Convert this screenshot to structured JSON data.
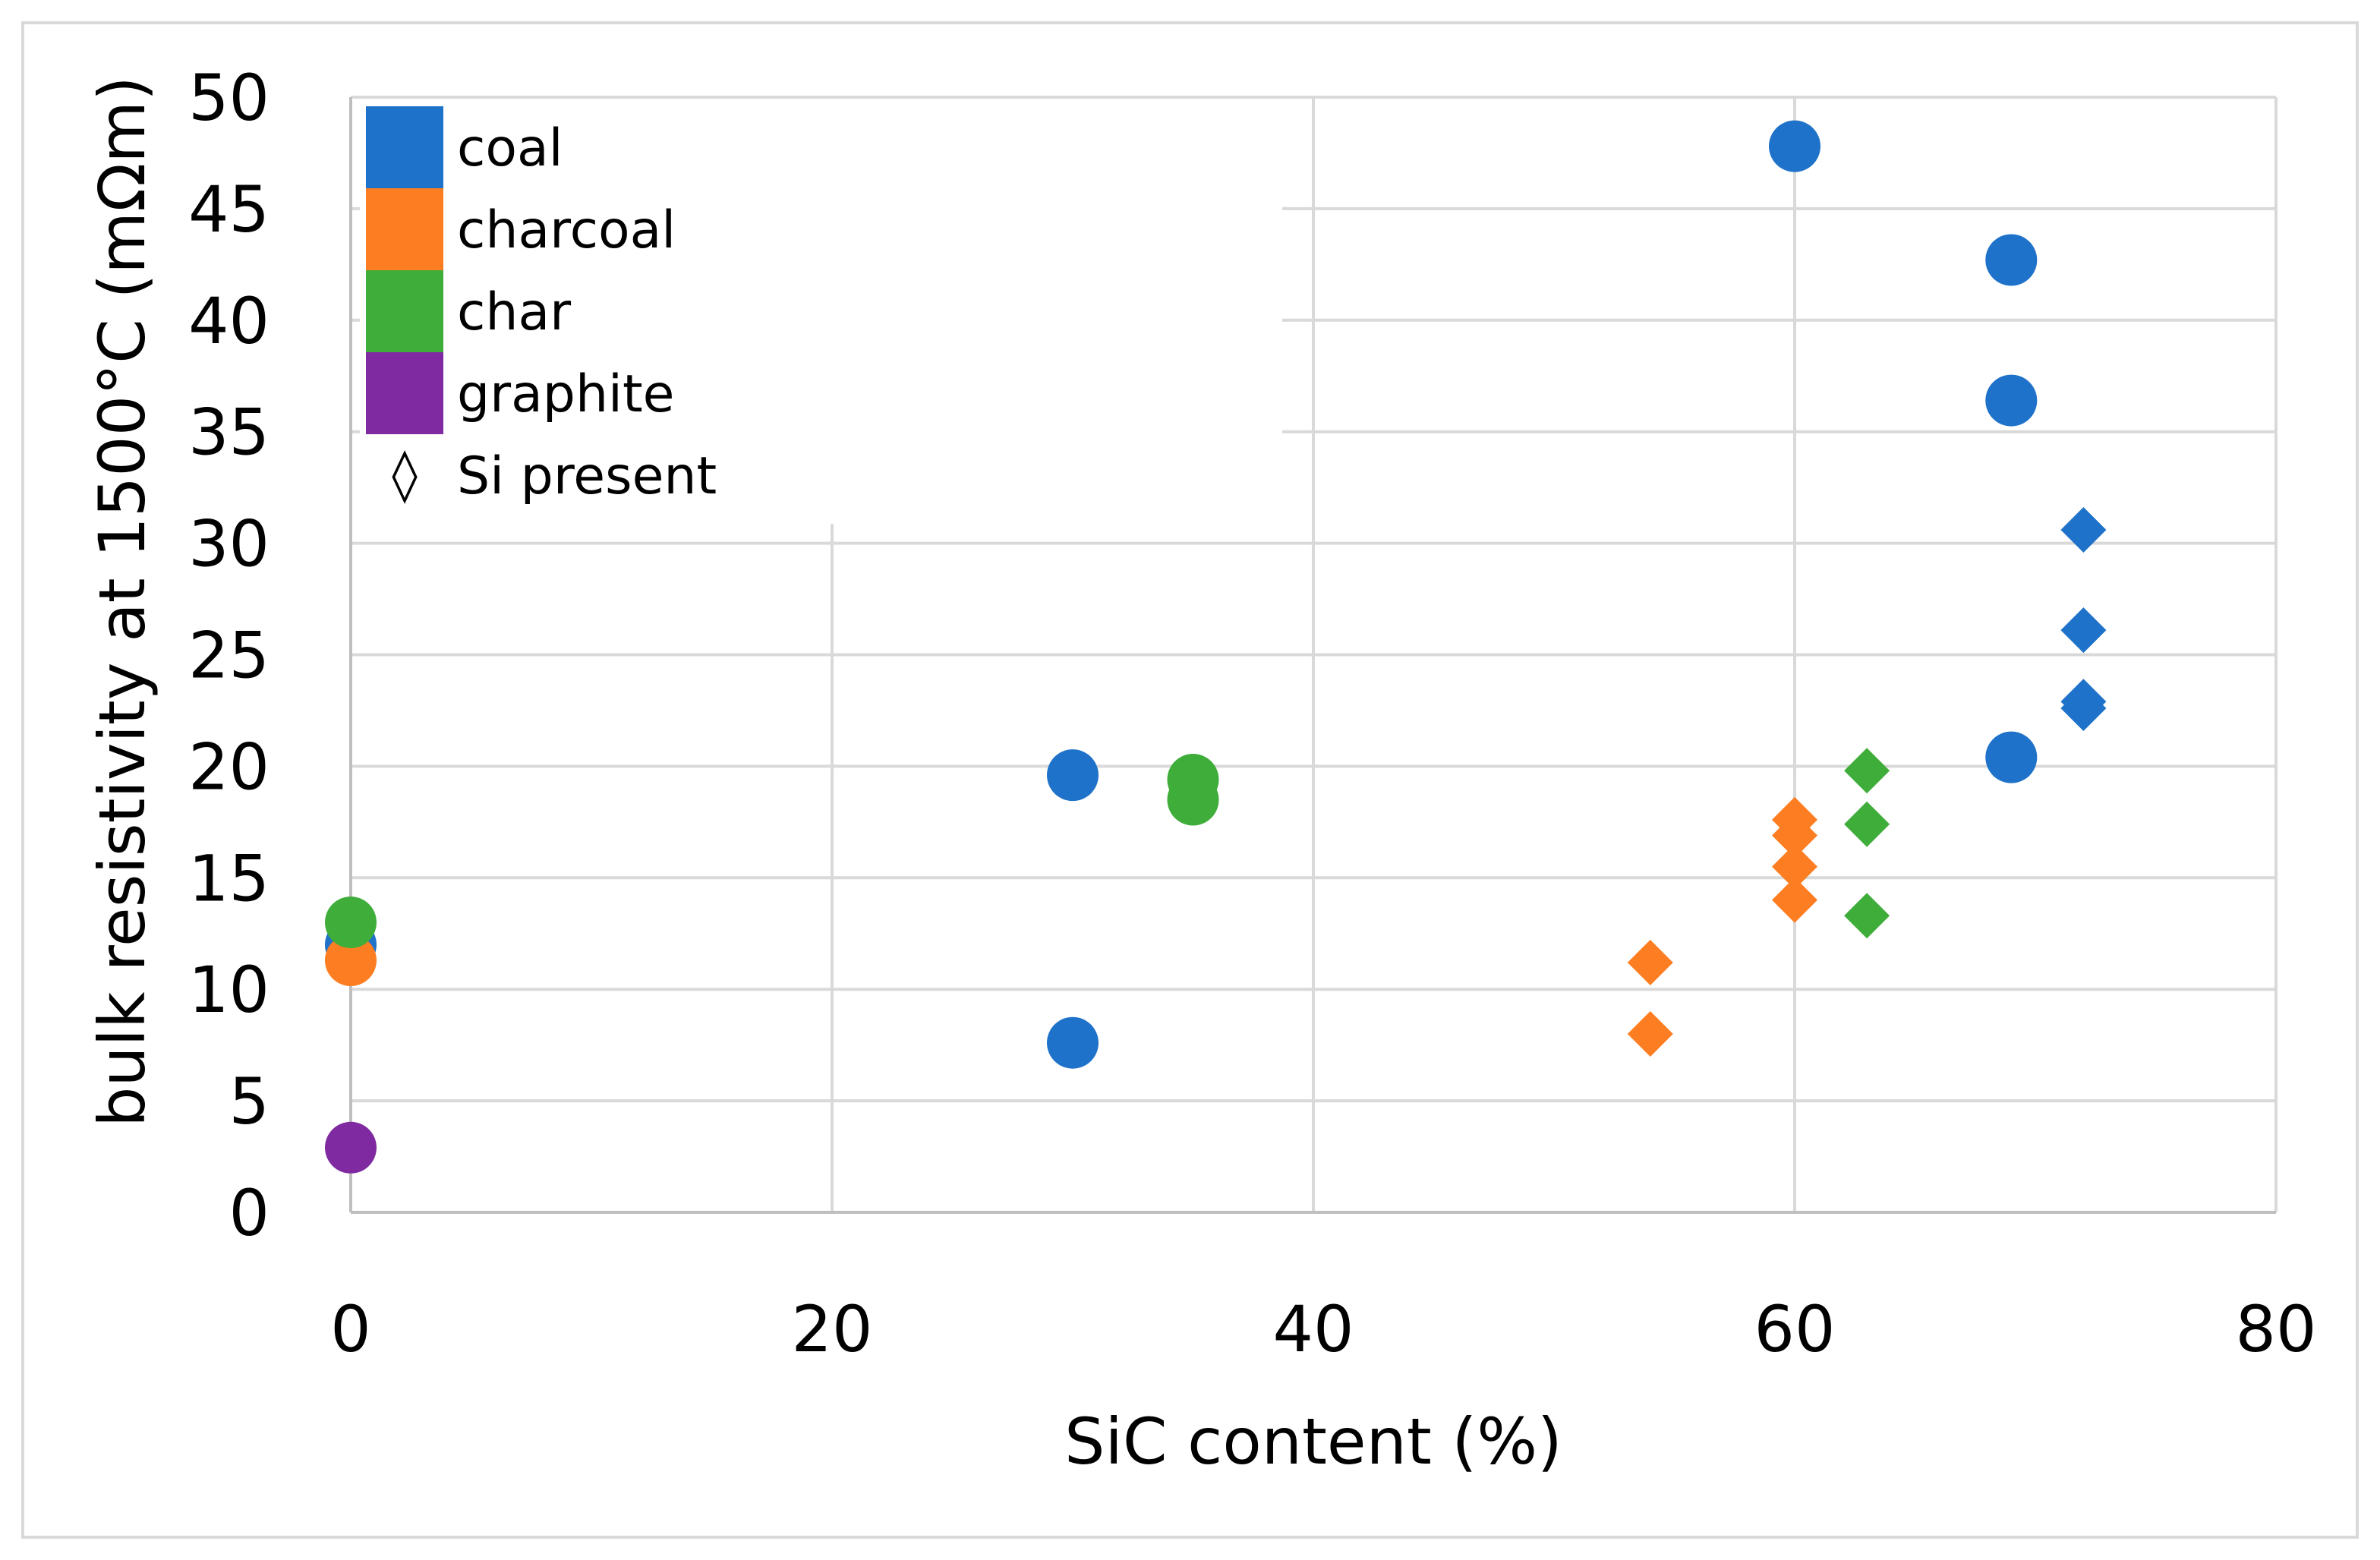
{
  "chart_data": {
    "type": "scatter",
    "xlabel": "SiC content (%)",
    "ylabel": "bulk resistivity at 1500°C (mΩm)",
    "xlim": [
      0,
      80
    ],
    "ylim": [
      0,
      50
    ],
    "x_ticks": [
      0,
      20,
      40,
      60,
      80
    ],
    "y_ticks": [
      0,
      5,
      10,
      15,
      20,
      25,
      30,
      35,
      40,
      45,
      50
    ],
    "grid": true,
    "legend_position": "top-left",
    "legend": [
      {
        "name": "coal",
        "color": "#1f72c9",
        "kind": "color"
      },
      {
        "name": "charcoal",
        "color": "#fd7e22",
        "kind": "color"
      },
      {
        "name": "char",
        "color": "#3fad3a",
        "kind": "color"
      },
      {
        "name": "graphite",
        "color": "#7f2aa1",
        "kind": "color"
      },
      {
        "name": "Si present",
        "kind": "marker",
        "symbol": "◊"
      }
    ],
    "series": [
      {
        "name": "coal",
        "color": "#1f72c9",
        "points": [
          {
            "x": 0,
            "y": 12.0,
            "marker": "circle"
          },
          {
            "x": 30,
            "y": 19.6,
            "marker": "circle"
          },
          {
            "x": 30,
            "y": 7.6,
            "marker": "circle"
          },
          {
            "x": 60,
            "y": 47.8,
            "marker": "circle"
          },
          {
            "x": 69,
            "y": 42.7,
            "marker": "circle"
          },
          {
            "x": 69,
            "y": 36.4,
            "marker": "circle"
          },
          {
            "x": 69,
            "y": 20.4,
            "marker": "circle"
          },
          {
            "x": 72,
            "y": 30.6,
            "marker": "diamond"
          },
          {
            "x": 72,
            "y": 26.1,
            "marker": "diamond"
          },
          {
            "x": 72,
            "y": 22.9,
            "marker": "diamond"
          },
          {
            "x": 72,
            "y": 22.6,
            "marker": "diamond"
          }
        ]
      },
      {
        "name": "charcoal",
        "color": "#fd7e22",
        "points": [
          {
            "x": 0,
            "y": 11.3,
            "marker": "circle"
          },
          {
            "x": 54,
            "y": 11.2,
            "marker": "diamond"
          },
          {
            "x": 54,
            "y": 8.0,
            "marker": "diamond"
          },
          {
            "x": 60,
            "y": 17.6,
            "marker": "diamond"
          },
          {
            "x": 60,
            "y": 16.9,
            "marker": "diamond"
          },
          {
            "x": 60,
            "y": 15.5,
            "marker": "diamond"
          },
          {
            "x": 60,
            "y": 14.0,
            "marker": "diamond"
          }
        ]
      },
      {
        "name": "char",
        "color": "#3fad3a",
        "points": [
          {
            "x": 0,
            "y": 13.0,
            "marker": "circle"
          },
          {
            "x": 35,
            "y": 19.4,
            "marker": "circle"
          },
          {
            "x": 35,
            "y": 18.5,
            "marker": "circle"
          },
          {
            "x": 63,
            "y": 19.8,
            "marker": "diamond"
          },
          {
            "x": 63,
            "y": 17.4,
            "marker": "diamond"
          },
          {
            "x": 63,
            "y": 13.3,
            "marker": "diamond"
          }
        ]
      },
      {
        "name": "graphite",
        "color": "#7f2aa1",
        "points": [
          {
            "x": 0,
            "y": 2.9,
            "marker": "circle"
          }
        ]
      }
    ]
  }
}
